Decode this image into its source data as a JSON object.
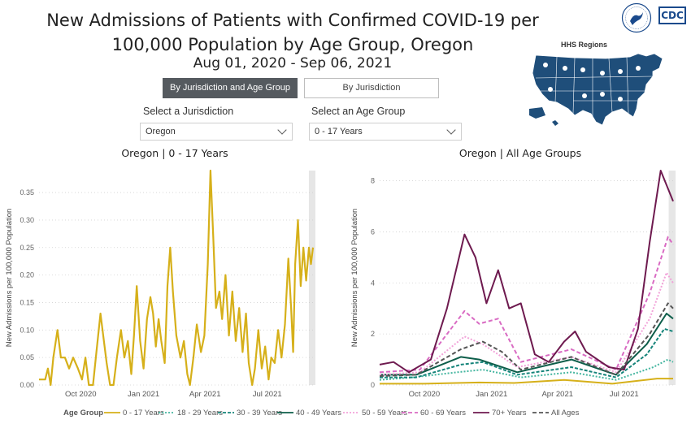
{
  "header": {
    "title_line1": "New Admissions of Patients with Confirmed COVID-19 per",
    "title_line2": "100,000 Population by Age Group, Oregon",
    "date_range": "Aug 01, 2020 - Sep 06, 2021"
  },
  "tabs": [
    {
      "label": "By Jurisdiction and Age Group",
      "active": true
    },
    {
      "label": "By Jurisdiction",
      "active": false
    }
  ],
  "filters": {
    "jurisdiction_label": "Select a Jurisdiction",
    "jurisdiction_value": "Oregon",
    "age_group_label": "Select an Age Group",
    "age_group_value": "0 - 17 Years"
  },
  "map": {
    "title": "HHS Regions",
    "color": "#1f4e7a"
  },
  "logo": {
    "cdc_text": "CDC"
  },
  "colors": {
    "0 - 17 Years": "#d6b01a",
    "18 - 29 Years": "#45b6a0",
    "30 - 39 Years": "#15847a",
    "40 - 49 Years": "#0d5e4a",
    "50 - 59 Years": "#f2a3d9",
    "60 - 69 Years": "#d96bc3",
    "70+ Years": "#6e1a4f",
    "All Ages": "#555555"
  },
  "legend": {
    "title": "Age Group",
    "items": [
      "0 - 17 Years",
      "18 - 29 Years",
      "30 - 39 Years",
      "40 - 49 Years",
      "50 - 59 Years",
      "60 - 69 Years",
      "70+ Years",
      "All Ages"
    ]
  },
  "chart_data": [
    {
      "type": "line",
      "title": "Oregon | 0 - 17 Years",
      "ylabel": "New Admissions per 100,000 Population",
      "xlabel": "",
      "x_start": "2020-08-01",
      "x_end": "2021-09-06",
      "ylim": [
        0,
        0.39
      ],
      "yticks": [
        0,
        0.05,
        0.1,
        0.15,
        0.2,
        0.25,
        0.3,
        0.35
      ],
      "ytick_labels": [
        "0.00",
        "0.05",
        "0.10",
        "0.15",
        "0.20",
        "0.25",
        "0.30",
        "0.35"
      ],
      "xticks": [
        {
          "date": "2020-10-01",
          "label": "Oct 2020"
        },
        {
          "date": "2021-01-01",
          "label": "Jan 2021"
        },
        {
          "date": "2021-04-01",
          "label": "Apr 2021"
        },
        {
          "date": "2021-07-01",
          "label": "Jul 2021"
        }
      ],
      "grid": "horizontal-dotted",
      "series": [
        {
          "name": "0 - 17 Years",
          "points": [
            [
              "2020-08-01",
              0.01
            ],
            [
              "2020-08-10",
              0.01
            ],
            [
              "2020-08-14",
              0.03
            ],
            [
              "2020-08-18",
              0.0
            ],
            [
              "2020-08-22",
              0.05
            ],
            [
              "2020-08-28",
              0.1
            ],
            [
              "2020-09-02",
              0.05
            ],
            [
              "2020-09-08",
              0.05
            ],
            [
              "2020-09-14",
              0.03
            ],
            [
              "2020-09-20",
              0.05
            ],
            [
              "2020-09-27",
              0.03
            ],
            [
              "2020-10-03",
              0.01
            ],
            [
              "2020-10-08",
              0.05
            ],
            [
              "2020-10-13",
              0.0
            ],
            [
              "2020-10-19",
              0.0
            ],
            [
              "2020-10-24",
              0.06
            ],
            [
              "2020-10-30",
              0.13
            ],
            [
              "2020-11-04",
              0.08
            ],
            [
              "2020-11-08",
              0.04
            ],
            [
              "2020-11-13",
              0.0
            ],
            [
              "2020-11-18",
              0.0
            ],
            [
              "2020-11-23",
              0.05
            ],
            [
              "2020-11-29",
              0.1
            ],
            [
              "2020-12-04",
              0.05
            ],
            [
              "2020-12-09",
              0.08
            ],
            [
              "2020-12-14",
              0.02
            ],
            [
              "2020-12-18",
              0.09
            ],
            [
              "2020-12-22",
              0.18
            ],
            [
              "2020-12-27",
              0.08
            ],
            [
              "2021-01-01",
              0.03
            ],
            [
              "2021-01-06",
              0.12
            ],
            [
              "2021-01-11",
              0.16
            ],
            [
              "2021-01-15",
              0.13
            ],
            [
              "2021-01-19",
              0.07
            ],
            [
              "2021-01-23",
              0.12
            ],
            [
              "2021-01-27",
              0.08
            ],
            [
              "2021-02-01",
              0.04
            ],
            [
              "2021-02-05",
              0.18
            ],
            [
              "2021-02-09",
              0.25
            ],
            [
              "2021-02-13",
              0.17
            ],
            [
              "2021-02-18",
              0.09
            ],
            [
              "2021-02-24",
              0.05
            ],
            [
              "2021-03-01",
              0.08
            ],
            [
              "2021-03-06",
              0.02
            ],
            [
              "2021-03-10",
              0.0
            ],
            [
              "2021-03-15",
              0.05
            ],
            [
              "2021-03-20",
              0.11
            ],
            [
              "2021-03-26",
              0.06
            ],
            [
              "2021-03-31",
              0.09
            ],
            [
              "2021-04-05",
              0.22
            ],
            [
              "2021-04-09",
              0.39
            ],
            [
              "2021-04-13",
              0.27
            ],
            [
              "2021-04-17",
              0.14
            ],
            [
              "2021-04-22",
              0.17
            ],
            [
              "2021-04-26",
              0.12
            ],
            [
              "2021-05-01",
              0.2
            ],
            [
              "2021-05-06",
              0.09
            ],
            [
              "2021-05-11",
              0.17
            ],
            [
              "2021-05-16",
              0.08
            ],
            [
              "2021-05-21",
              0.14
            ],
            [
              "2021-05-26",
              0.06
            ],
            [
              "2021-05-31",
              0.13
            ],
            [
              "2021-06-04",
              0.04
            ],
            [
              "2021-06-09",
              0.0
            ],
            [
              "2021-06-13",
              0.03
            ],
            [
              "2021-06-18",
              0.1
            ],
            [
              "2021-06-23",
              0.03
            ],
            [
              "2021-06-28",
              0.07
            ],
            [
              "2021-07-03",
              0.01
            ],
            [
              "2021-07-07",
              0.05
            ],
            [
              "2021-07-12",
              0.04
            ],
            [
              "2021-07-17",
              0.1
            ],
            [
              "2021-07-22",
              0.05
            ],
            [
              "2021-07-27",
              0.11
            ],
            [
              "2021-08-01",
              0.23
            ],
            [
              "2021-08-05",
              0.14
            ],
            [
              "2021-08-08",
              0.06
            ],
            [
              "2021-08-11",
              0.22
            ],
            [
              "2021-08-15",
              0.3
            ],
            [
              "2021-08-19",
              0.18
            ],
            [
              "2021-08-23",
              0.25
            ],
            [
              "2021-08-27",
              0.19
            ],
            [
              "2021-08-31",
              0.25
            ],
            [
              "2021-09-03",
              0.22
            ],
            [
              "2021-09-06",
              0.25
            ]
          ]
        }
      ]
    },
    {
      "type": "line",
      "title": "Oregon | All Age Groups",
      "ylabel": "New Admissions per 100,000 Population",
      "xlabel": "",
      "x_start": "2020-08-01",
      "x_end": "2021-09-06",
      "ylim": [
        0,
        8.4
      ],
      "yticks": [
        0,
        2,
        4,
        6,
        8
      ],
      "ytick_labels": [
        "0",
        "2",
        "4",
        "6",
        "8"
      ],
      "xticks": [
        {
          "date": "2020-10-01",
          "label": "Oct 2020"
        },
        {
          "date": "2021-01-01",
          "label": "Jan 2021"
        },
        {
          "date": "2021-04-01",
          "label": "Apr 2021"
        },
        {
          "date": "2021-07-01",
          "label": "Jul 2021"
        }
      ],
      "grid": "horizontal-dotted",
      "series": [
        {
          "name": "0 - 17 Years",
          "points": [
            [
              "2020-08-01",
              0.05
            ],
            [
              "2020-10-01",
              0.05
            ],
            [
              "2020-12-15",
              0.1
            ],
            [
              "2021-02-01",
              0.08
            ],
            [
              "2021-04-10",
              0.2
            ],
            [
              "2021-06-15",
              0.05
            ],
            [
              "2021-08-15",
              0.25
            ],
            [
              "2021-09-06",
              0.25
            ]
          ]
        },
        {
          "name": "18 - 29 Years",
          "points": [
            [
              "2020-08-01",
              0.2
            ],
            [
              "2020-09-15",
              0.3
            ],
            [
              "2020-11-15",
              0.5
            ],
            [
              "2020-12-20",
              0.6
            ],
            [
              "2021-02-10",
              0.3
            ],
            [
              "2021-04-20",
              0.5
            ],
            [
              "2021-06-20",
              0.2
            ],
            [
              "2021-08-10",
              0.7
            ],
            [
              "2021-08-30",
              1.0
            ],
            [
              "2021-09-06",
              0.9
            ]
          ]
        },
        {
          "name": "30 - 39 Years",
          "points": [
            [
              "2020-08-01",
              0.3
            ],
            [
              "2020-09-20",
              0.3
            ],
            [
              "2020-11-20",
              0.8
            ],
            [
              "2020-12-20",
              0.9
            ],
            [
              "2021-02-05",
              0.4
            ],
            [
              "2021-04-20",
              0.7
            ],
            [
              "2021-06-20",
              0.3
            ],
            [
              "2021-08-01",
              1.2
            ],
            [
              "2021-08-25",
              2.2
            ],
            [
              "2021-09-06",
              2.1
            ]
          ]
        },
        {
          "name": "40 - 49 Years",
          "points": [
            [
              "2020-08-01",
              0.4
            ],
            [
              "2020-09-20",
              0.4
            ],
            [
              "2020-11-20",
              1.1
            ],
            [
              "2020-12-15",
              1.0
            ],
            [
              "2021-02-05",
              0.5
            ],
            [
              "2021-04-20",
              1.0
            ],
            [
              "2021-06-20",
              0.4
            ],
            [
              "2021-08-01",
              1.6
            ],
            [
              "2021-08-28",
              2.8
            ],
            [
              "2021-09-06",
              2.6
            ]
          ]
        },
        {
          "name": "50 - 59 Years",
          "points": [
            [
              "2020-08-01",
              0.4
            ],
            [
              "2020-09-25",
              0.5
            ],
            [
              "2020-11-25",
              1.9
            ],
            [
              "2020-12-20",
              1.6
            ],
            [
              "2021-02-05",
              0.7
            ],
            [
              "2021-04-20",
              1.1
            ],
            [
              "2021-06-20",
              0.5
            ],
            [
              "2021-08-05",
              2.6
            ],
            [
              "2021-08-28",
              4.4
            ],
            [
              "2021-09-06",
              4.0
            ]
          ]
        },
        {
          "name": "60 - 69 Years",
          "points": [
            [
              "2020-08-01",
              0.5
            ],
            [
              "2020-09-25",
              0.6
            ],
            [
              "2020-11-25",
              2.9
            ],
            [
              "2020-12-15",
              2.4
            ],
            [
              "2021-01-10",
              2.6
            ],
            [
              "2021-02-10",
              0.9
            ],
            [
              "2021-04-20",
              1.4
            ],
            [
              "2021-06-20",
              0.6
            ],
            [
              "2021-08-05",
              3.6
            ],
            [
              "2021-08-30",
              5.8
            ],
            [
              "2021-09-06",
              5.5
            ]
          ]
        },
        {
          "name": "70+ Years",
          "points": [
            [
              "2020-08-01",
              0.8
            ],
            [
              "2020-08-20",
              0.9
            ],
            [
              "2020-09-10",
              0.5
            ],
            [
              "2020-10-10",
              1.0
            ],
            [
              "2020-11-01",
              3.0
            ],
            [
              "2020-11-25",
              5.9
            ],
            [
              "2020-12-10",
              5.0
            ],
            [
              "2020-12-25",
              3.2
            ],
            [
              "2021-01-10",
              4.5
            ],
            [
              "2021-01-25",
              3.0
            ],
            [
              "2021-02-10",
              3.2
            ],
            [
              "2021-03-01",
              1.2
            ],
            [
              "2021-03-20",
              0.9
            ],
            [
              "2021-04-10",
              1.7
            ],
            [
              "2021-04-25",
              2.1
            ],
            [
              "2021-05-10",
              1.3
            ],
            [
              "2021-06-10",
              0.7
            ],
            [
              "2021-07-01",
              0.6
            ],
            [
              "2021-07-20",
              2.2
            ],
            [
              "2021-08-05",
              5.6
            ],
            [
              "2021-08-20",
              8.4
            ],
            [
              "2021-09-06",
              7.2
            ]
          ]
        },
        {
          "name": "All Ages",
          "points": [
            [
              "2020-08-01",
              0.35
            ],
            [
              "2020-09-20",
              0.4
            ],
            [
              "2020-11-20",
              1.4
            ],
            [
              "2020-12-20",
              1.7
            ],
            [
              "2021-01-15",
              1.3
            ],
            [
              "2021-02-10",
              0.6
            ],
            [
              "2021-04-20",
              1.1
            ],
            [
              "2021-06-20",
              0.4
            ],
            [
              "2021-08-05",
              2.0
            ],
            [
              "2021-08-30",
              3.2
            ],
            [
              "2021-09-06",
              3.0
            ]
          ]
        }
      ]
    }
  ]
}
